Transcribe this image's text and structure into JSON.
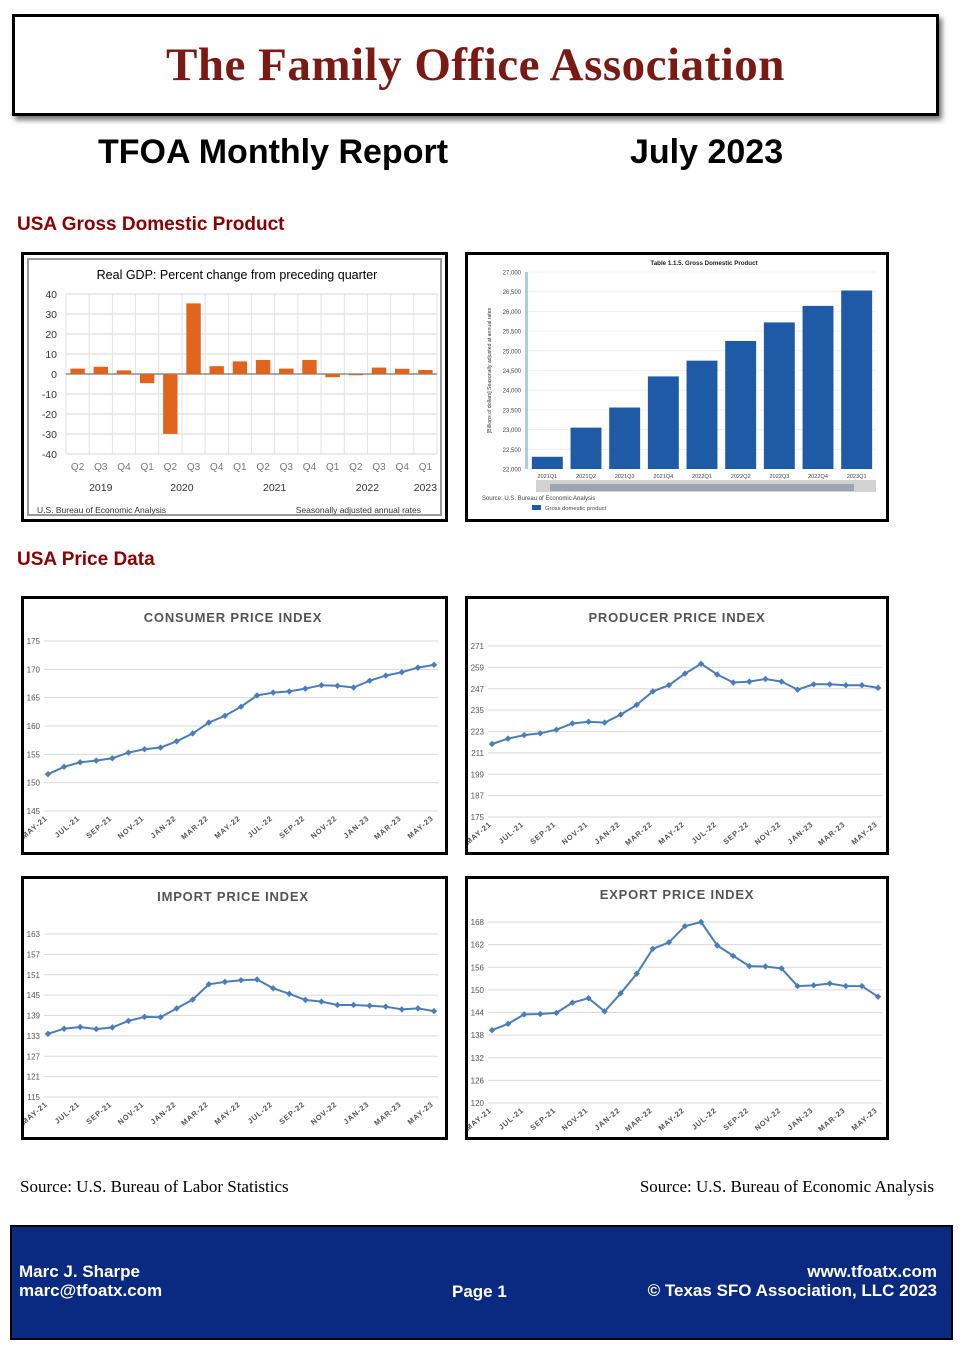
{
  "header": {
    "org_name": "The Family Office Association",
    "report_title": "TFOA Monthly Report",
    "report_date": "July 2023"
  },
  "sections": {
    "gdp_heading": "USA Gross Domestic Product",
    "price_heading": "USA Price Data"
  },
  "gdp_change_chart": {
    "title": "Real GDP:  Percent change from preceding quarter",
    "quarters": [
      "Q2",
      "Q3",
      "Q4",
      "Q1",
      "Q2",
      "Q3",
      "Q4",
      "Q1",
      "Q2",
      "Q3",
      "Q4",
      "Q1",
      "Q2",
      "Q3",
      "Q4",
      "Q1"
    ],
    "years": [
      {
        "label": "2019",
        "first": 0,
        "last": 2
      },
      {
        "label": "2020",
        "first": 3,
        "last": 6
      },
      {
        "label": "2021",
        "first": 7,
        "last": 10
      },
      {
        "label": "2022",
        "first": 11,
        "last": 14
      },
      {
        "label": "2023",
        "first": 15,
        "last": 15
      }
    ],
    "source": "U.S. Bureau of Economic Analysis",
    "note": "Seasonally adjusted annual rates"
  },
  "gdp_level_chart": {
    "title": "Table 1.1.5. Gross Domestic Product",
    "ylabel": "[Billions of dollars] Seasonally adjusted at annual rates",
    "source": "Source: U.S. Bureau of Economic Analysis",
    "legend_label": "Gross domestic product"
  },
  "price_months": [
    "MAY-21",
    "JUL-21",
    "SEP-21",
    "NOV-21",
    "JAN-22",
    "MAR-22",
    "MAY-22",
    "JUL-22",
    "SEP-22",
    "NOV-22",
    "JAN-23",
    "MAR-23",
    "MAY-23"
  ],
  "price_titles": {
    "cpi": "CONSUMER PRICE INDEX",
    "ppi": "PRODUCER PRICE INDEX",
    "imp": "IMPORT PRICE INDEX",
    "exp": "EXPORT PRICE INDEX"
  },
  "chart_data": [
    {
      "type": "bar",
      "title": "Real GDP:  Percent change from preceding quarter",
      "categories": [
        "2019 Q2",
        "2019 Q3",
        "2019 Q4",
        "2020 Q1",
        "2020 Q2",
        "2020 Q3",
        "2020 Q4",
        "2021 Q1",
        "2021 Q2",
        "2021 Q3",
        "2021 Q4",
        "2022 Q1",
        "2022 Q2",
        "2022 Q3",
        "2022 Q4",
        "2023 Q1"
      ],
      "values": [
        2.7,
        3.6,
        1.8,
        -4.6,
        -29.9,
        35.3,
        3.9,
        6.3,
        7.0,
        2.7,
        7.0,
        -1.6,
        -0.6,
        3.2,
        2.6,
        2.0
      ],
      "ylim": [
        -40,
        40
      ],
      "yticks": [
        -40,
        -30,
        -20,
        -10,
        0,
        10,
        20,
        30,
        40
      ],
      "grid": true,
      "color": "#e0641d"
    },
    {
      "type": "bar",
      "title": "Table 1.1.5. Gross Domestic Product",
      "ylabel": "[Billions of dollars] Seasonally adjusted at annual rates",
      "categories": [
        "2021Q1",
        "2021Q2",
        "2021Q3",
        "2021Q4",
        "2022Q1",
        "2022Q2",
        "2022Q3",
        "2022Q4",
        "2023Q1"
      ],
      "values": [
        22310,
        23050,
        23560,
        24350,
        24750,
        25250,
        25720,
        26140,
        26530
      ],
      "ylim": [
        22000,
        27000
      ],
      "yticks": [
        "22,000",
        "22,500",
        "23,000",
        "23,500",
        "24,000",
        "24,500",
        "25,000",
        "25,500",
        "26,000",
        "26,500",
        "27,000"
      ],
      "legend": "bottom-left",
      "color": "#1f5aa6"
    },
    {
      "type": "line",
      "title": "CONSUMER PRICE INDEX",
      "ylim": [
        145,
        175
      ],
      "yticks": [
        145,
        150,
        155,
        160,
        165,
        170,
        175
      ],
      "values": [
        151.5,
        152.8,
        153.6,
        153.9,
        154.3,
        155.3,
        155.9,
        156.2,
        157.3,
        158.7,
        160.6,
        161.8,
        163.4,
        165.4,
        165.9,
        166.1,
        166.6,
        167.2,
        167.1,
        166.8,
        168.0,
        168.9,
        169.5,
        170.3,
        170.8
      ],
      "grid": true,
      "color": "#4a7ebb"
    },
    {
      "type": "line",
      "title": "PRODUCER PRICE INDEX",
      "ylim": [
        175,
        271
      ],
      "yticks": [
        175,
        187,
        199,
        211,
        223,
        235,
        247,
        259,
        271
      ],
      "values": [
        216,
        219,
        221,
        222,
        224,
        227.5,
        228.5,
        228,
        232.5,
        238,
        245.5,
        249,
        255.5,
        261,
        255,
        250.5,
        251,
        252.5,
        251,
        246.5,
        249.5,
        249.5,
        249,
        249,
        247.5
      ],
      "grid": true,
      "color": "#4a7ebb"
    },
    {
      "type": "line",
      "title": "IMPORT PRICE INDEX",
      "ylim": [
        115,
        163
      ],
      "yticks": [
        115,
        121,
        127,
        133,
        139,
        145,
        151,
        157,
        163
      ],
      "values": [
        133.6,
        135.1,
        135.6,
        135.0,
        135.5,
        137.4,
        138.6,
        138.5,
        141.1,
        143.7,
        148.2,
        148.9,
        149.4,
        149.6,
        147.0,
        145.4,
        143.6,
        143.1,
        142.1,
        142.1,
        141.9,
        141.6,
        140.8,
        141.1,
        140.3
      ],
      "grid": true,
      "color": "#4a7ebb"
    },
    {
      "type": "line",
      "title": "EXPORT PRICE INDEX",
      "ylim": [
        120,
        168
      ],
      "yticks": [
        120,
        126,
        132,
        138,
        144,
        150,
        156,
        162,
        168
      ],
      "values": [
        139.3,
        141.0,
        143.5,
        143.6,
        143.9,
        146.6,
        147.8,
        144.3,
        149.1,
        154.3,
        160.9,
        162.6,
        166.9,
        168.0,
        161.8,
        159.0,
        156.3,
        156.2,
        155.7,
        151.0,
        151.2,
        151.7,
        151.0,
        151.0,
        148.2
      ],
      "grid": true,
      "color": "#4a7ebb"
    }
  ],
  "sources": {
    "left": "Source: U.S. Bureau of Labor Statistics",
    "right": "Source: U.S. Bureau of Economic Analysis"
  },
  "footer": {
    "author": "Marc J. Sharpe",
    "email": "marc@tfoatx.com",
    "page": "Page 1",
    "website": "www.tfoatx.com",
    "copyright": "© Texas SFO Association, LLC 2023"
  },
  "colors": {
    "header_title": "#7b1a14",
    "section_heading": "#8b0000",
    "footer_bg": "#0a2a82",
    "gdp_change_bars": "#e0641d",
    "gdp_level_bars": "#1f5aa6",
    "price_lines": "#4a7ebb"
  }
}
